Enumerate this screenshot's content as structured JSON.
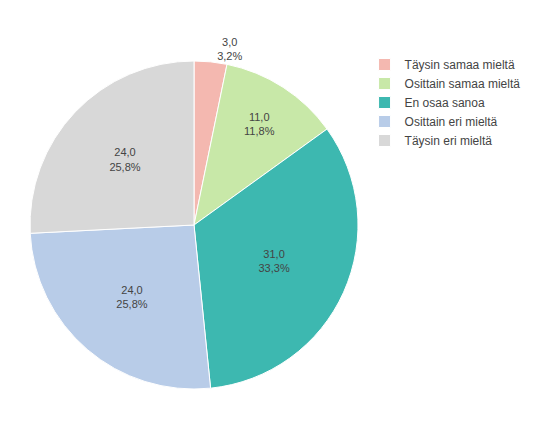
{
  "chart_data": {
    "type": "pie",
    "categories": [
      "Täysin samaa mieltä",
      "Osittain samaa mieltä",
      "En osaa sanoa",
      "Osittain eri mieltä",
      "Täysin eri mieltä"
    ],
    "values": [
      3.0,
      11.0,
      31.0,
      24.0,
      24.0
    ],
    "value_labels": [
      "3,0\n3,2%",
      "11,0\n11,8%",
      "31,0\n33,3%",
      "24,0\n25,8%",
      "24,0\n25,8%"
    ],
    "colors": [
      "#f4b8b0",
      "#c8e8a8",
      "#3db8b0",
      "#b8cce8",
      "#d8d8d8"
    ],
    "data_labels": true,
    "legend": "upper right"
  }
}
